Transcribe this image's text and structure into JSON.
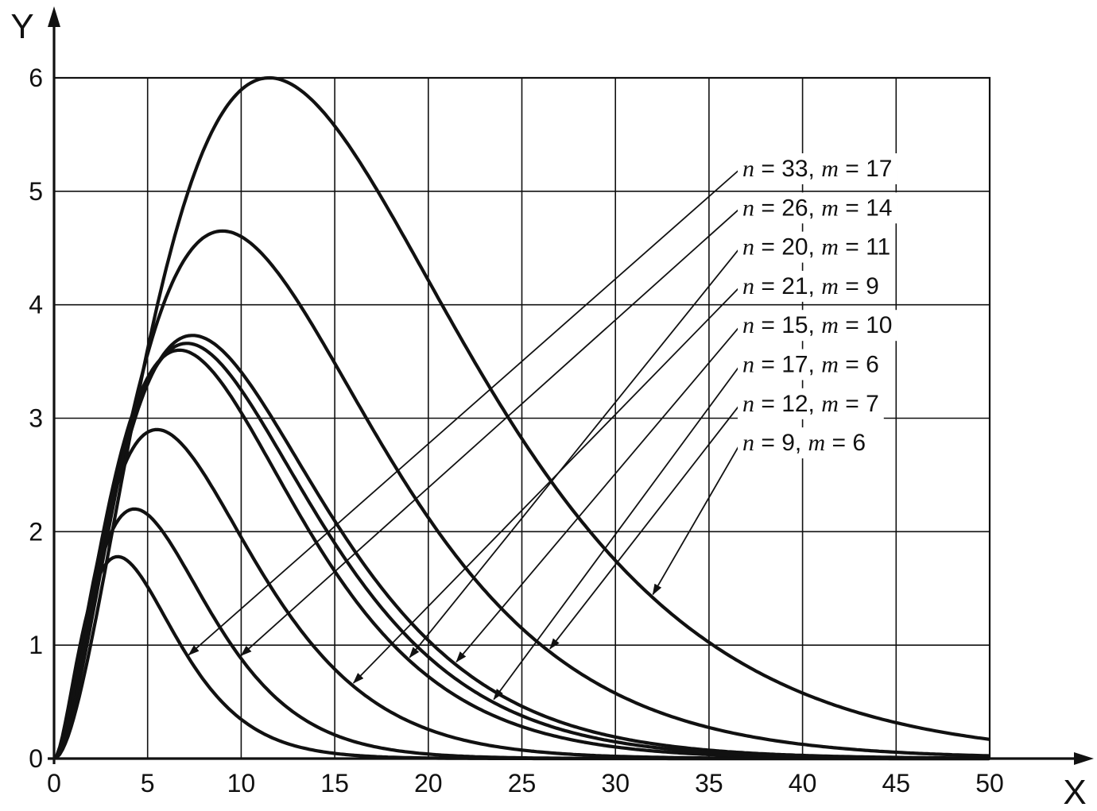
{
  "figure": {
    "background": "#ffffff",
    "ink": "#111111"
  },
  "chart_data": {
    "type": "line",
    "title": "",
    "xlabel": "X",
    "ylabel": "Y",
    "xlim": [
      0,
      50
    ],
    "ylim": [
      0,
      6
    ],
    "x_ticks": [
      0,
      5,
      10,
      15,
      20,
      25,
      30,
      35,
      40,
      45,
      50
    ],
    "y_ticks": [
      0,
      1,
      2,
      3,
      4,
      5,
      6
    ],
    "grid": true,
    "legend_position": "annotated-arrows-upper-right",
    "var_names": [
      "n",
      "m"
    ],
    "series": [
      {
        "label": "n = 33, m = 17",
        "n": 33,
        "m": 17,
        "peak_x": 3.4,
        "peak_y": 1.78,
        "shape": 1.9,
        "arrow_x": 7.2
      },
      {
        "label": "n = 26, m = 14",
        "n": 26,
        "m": 14,
        "peak_x": 4.3,
        "peak_y": 2.2,
        "shape": 1.9,
        "arrow_x": 10.0
      },
      {
        "label": "n = 20, m = 11",
        "n": 20,
        "m": 11,
        "peak_x": 6.7,
        "peak_y": 3.6,
        "shape": 1.8,
        "arrow_x": 19.0
      },
      {
        "label": "n = 21, m = 9",
        "n": 21,
        "m": 9,
        "peak_x": 5.5,
        "peak_y": 2.9,
        "shape": 1.8,
        "arrow_x": 16.0
      },
      {
        "label": "n = 15, m = 10",
        "n": 15,
        "m": 10,
        "peak_x": 7.4,
        "peak_y": 3.73,
        "shape": 1.8,
        "arrow_x": 21.5
      },
      {
        "label": "n = 17, m = 6",
        "n": 17,
        "m": 6,
        "peak_x": 7.1,
        "peak_y": 3.66,
        "shape": 1.8,
        "arrow_x": 23.5
      },
      {
        "label": "n = 12, m = 7",
        "n": 12,
        "m": 7,
        "peak_x": 9.0,
        "peak_y": 4.65,
        "shape": 1.85,
        "arrow_x": 26.5
      },
      {
        "label": "n = 9, m = 6",
        "n": 9,
        "m": 6,
        "peak_x": 11.5,
        "peak_y": 6.0,
        "shape": 1.9,
        "arrow_x": 32.0
      }
    ]
  }
}
